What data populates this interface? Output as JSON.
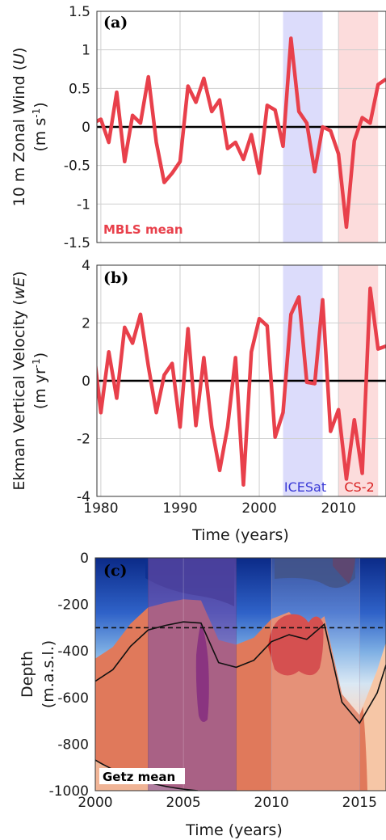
{
  "colors": {
    "line": "#e8404b",
    "icesat_band": "#dcdcfb",
    "cs2_band": "#fcdcdc",
    "icesat_text": "#3a3ad6",
    "cs2_text": "#d82020",
    "contour_deep": "#e0795b",
    "contour_mid": "#f7c8a8",
    "contour_shallow_dark": "#0c2f8a"
  },
  "chart_data": [
    {
      "type": "line",
      "panel_label": "(a)",
      "ylabel": "10 m Zonal Wind (U) (m s-1)",
      "ylabel_line1": "10 m Zonal Wind (",
      "ylabel_var": "U",
      "ylabel_line1_end": ")",
      "ylabel_unit_pre": "(m s",
      "ylabel_unit_sup": "-1",
      "ylabel_unit_post": ")",
      "xlim": [
        1979.5,
        2016
      ],
      "ylim": [
        -1.5,
        1.5
      ],
      "yticks": [
        -1.5,
        -1,
        -0.5,
        0,
        0.5,
        1,
        1.5
      ],
      "ytick_labels": [
        "-1.5",
        "-1",
        "-0.5",
        "0",
        "0.5",
        "1",
        "1.5"
      ],
      "xticks": [
        1980,
        1990,
        2000,
        2010
      ],
      "grid": true,
      "zero_line": true,
      "annotation": "MBLS mean",
      "shaded_periods": [
        {
          "name": "ICESat",
          "start": 2003,
          "end": 2008
        },
        {
          "name": "CS-2",
          "start": 2010,
          "end": 2015
        }
      ],
      "x": [
        1979,
        1980,
        1981,
        1982,
        1983,
        1984,
        1985,
        1986,
        1987,
        1988,
        1989,
        1990,
        1991,
        1992,
        1993,
        1994,
        1995,
        1996,
        1997,
        1998,
        1999,
        2000,
        2001,
        2002,
        2003,
        2004,
        2005,
        2006,
        2007,
        2008,
        2009,
        2010,
        2011,
        2012,
        2013,
        2014,
        2015,
        2016
      ],
      "series": [
        {
          "values": [
            0.05,
            0.1,
            -0.2,
            0.45,
            -0.45,
            0.15,
            0.05,
            0.65,
            -0.2,
            -0.72,
            -0.6,
            -0.45,
            0.53,
            0.32,
            0.63,
            0.2,
            0.35,
            -0.28,
            -0.2,
            -0.42,
            -0.1,
            -0.6,
            0.28,
            0.22,
            -0.25,
            1.15,
            0.2,
            0.05,
            -0.58,
            0.0,
            -0.05,
            -0.35,
            -1.3,
            -0.18,
            0.12,
            0.05,
            0.55,
            0.62
          ]
        }
      ]
    },
    {
      "type": "line",
      "panel_label": "(b)",
      "ylabel_line1": "Ekman Vertical Velocity (",
      "ylabel_var": "wE",
      "ylabel_line1_end": ")",
      "ylabel_unit_pre": "(m yr",
      "ylabel_unit_sup": "-1",
      "ylabel_unit_post": ")",
      "xlabel": "Time (years)",
      "xlim": [
        1979.5,
        2016
      ],
      "ylim": [
        -4,
        4
      ],
      "yticks": [
        -4,
        -2,
        0,
        2,
        4
      ],
      "ytick_labels": [
        "-4",
        "-2",
        "0",
        "2",
        "4"
      ],
      "xticks": [
        1980,
        1990,
        2000,
        2010
      ],
      "xtick_labels": [
        "1980",
        "1990",
        "2000",
        "2010"
      ],
      "grid": true,
      "zero_line": true,
      "shaded_periods": [
        {
          "name": "ICESat",
          "start": 2003,
          "end": 2008
        },
        {
          "name": "CS-2",
          "start": 2010,
          "end": 2015
        }
      ],
      "x": [
        1979,
        1980,
        1981,
        1982,
        1983,
        1984,
        1985,
        1986,
        1987,
        1988,
        1989,
        1990,
        1991,
        1992,
        1993,
        1994,
        1995,
        1996,
        1997,
        1998,
        1999,
        2000,
        2001,
        2002,
        2003,
        2004,
        2005,
        2006,
        2007,
        2008,
        2009,
        2010,
        2011,
        2012,
        2013,
        2014,
        2015,
        2016
      ],
      "series": [
        {
          "values": [
            1.3,
            -1.1,
            1.0,
            -0.6,
            1.85,
            1.3,
            2.3,
            0.5,
            -1.1,
            0.2,
            0.6,
            -1.6,
            1.8,
            -1.55,
            0.8,
            -1.6,
            -3.1,
            -1.6,
            0.8,
            -3.6,
            1.0,
            2.15,
            1.9,
            -1.95,
            -1.1,
            2.3,
            2.9,
            -0.05,
            -0.1,
            2.8,
            -1.75,
            -1.0,
            -3.4,
            -1.35,
            -3.2,
            3.2,
            1.1,
            1.2
          ]
        }
      ]
    },
    {
      "type": "heatmap",
      "panel_label": "(c)",
      "ylabel_line1": "Depth",
      "ylabel_line2": "(m.a.s.l.)",
      "xlabel": "Time (years)",
      "xlim": [
        2000,
        2016.5
      ],
      "ylim": [
        -1000,
        0
      ],
      "yticks": [
        0,
        -200,
        -400,
        -600,
        -800,
        -1000
      ],
      "ytick_labels": [
        "0",
        "-200",
        "-400",
        "-600",
        "-800",
        "-1000"
      ],
      "xticks": [
        2000,
        2005,
        2010,
        2015
      ],
      "xtick_labels": [
        "2000",
        "2005",
        "2010",
        "2015"
      ],
      "annotation": "Getz mean",
      "reference_depth": -300,
      "shaded_periods": [
        {
          "name": "ICESat",
          "start": 2003,
          "end": 2008
        },
        {
          "name": "CS-2",
          "start": 2010,
          "end": 2015
        }
      ],
      "isotherm_contour": {
        "x": [
          2000,
          2001,
          2002,
          2003,
          2004,
          2005,
          2006,
          2007,
          2008,
          2009,
          2010,
          2011,
          2012,
          2013,
          2014,
          2015,
          2016,
          2016.5
        ],
        "depth": [
          -530,
          -480,
          -380,
          -310,
          -290,
          -275,
          -280,
          -450,
          -470,
          -440,
          -360,
          -330,
          -350,
          -285,
          -620,
          -710,
          -580,
          -460
        ]
      }
    }
  ],
  "labels": {
    "icesat": "ICESat",
    "cs2": "CS-2"
  }
}
